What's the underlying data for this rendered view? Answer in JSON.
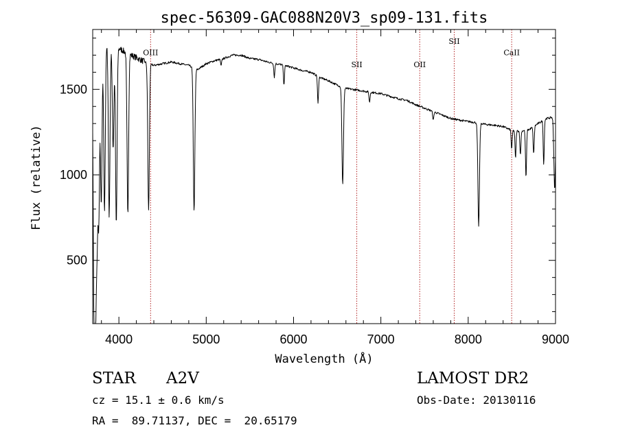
{
  "chart_data": {
    "type": "line",
    "title": "spec-56309-GAC088N20V3_sp09-131.fits",
    "xlabel": "Wavelength (Å)",
    "ylabel": "Flux (relative)",
    "xlim": [
      3700,
      9000
    ],
    "ylim": [
      130,
      1850
    ],
    "x_ticks": [
      4000,
      5000,
      6000,
      7000,
      8000,
      9000
    ],
    "y_ticks": [
      500,
      1000,
      1500
    ],
    "x_minor_step": 200,
    "y_minor_step": 100,
    "grid": false,
    "line_color": "#000000",
    "marker_color": "#b22222",
    "continuum": [
      [
        3700,
        1680
      ],
      [
        3800,
        1740
      ],
      [
        3900,
        1760
      ],
      [
        4000,
        1740
      ],
      [
        4100,
        1710
      ],
      [
        4200,
        1685
      ],
      [
        4300,
        1660
      ],
      [
        4400,
        1640
      ],
      [
        4500,
        1650
      ],
      [
        4600,
        1660
      ],
      [
        4700,
        1650
      ],
      [
        4800,
        1640
      ],
      [
        4900,
        1615
      ],
      [
        5000,
        1650
      ],
      [
        5100,
        1668
      ],
      [
        5200,
        1680
      ],
      [
        5300,
        1700
      ],
      [
        5400,
        1700
      ],
      [
        5500,
        1680
      ],
      [
        5600,
        1675
      ],
      [
        5700,
        1660
      ],
      [
        5800,
        1650
      ],
      [
        5900,
        1640
      ],
      [
        6000,
        1625
      ],
      [
        6100,
        1610
      ],
      [
        6200,
        1600
      ],
      [
        6300,
        1570
      ],
      [
        6400,
        1550
      ],
      [
        6500,
        1525
      ],
      [
        6600,
        1505
      ],
      [
        6700,
        1498
      ],
      [
        6800,
        1490
      ],
      [
        6900,
        1482
      ],
      [
        7000,
        1475
      ],
      [
        7100,
        1460
      ],
      [
        7200,
        1445
      ],
      [
        7300,
        1435
      ],
      [
        7400,
        1410
      ],
      [
        7500,
        1390
      ],
      [
        7600,
        1370
      ],
      [
        7700,
        1350
      ],
      [
        7800,
        1330
      ],
      [
        7900,
        1320
      ],
      [
        8000,
        1312
      ],
      [
        8100,
        1305
      ],
      [
        8200,
        1295
      ],
      [
        8300,
        1290
      ],
      [
        8400,
        1282
      ],
      [
        8500,
        1260
      ],
      [
        8600,
        1255
      ],
      [
        8700,
        1265
      ],
      [
        8800,
        1300
      ],
      [
        8900,
        1330
      ],
      [
        9000,
        1340
      ]
    ],
    "absorption_lines": [
      {
        "x": 3712,
        "depth": 880
      },
      {
        "x": 3722,
        "depth": 950
      },
      {
        "x": 3734,
        "depth": 1000
      },
      {
        "x": 3750,
        "depth": 920
      },
      {
        "x": 3770,
        "depth": 940
      },
      {
        "x": 3798,
        "depth": 920
      },
      {
        "x": 3835,
        "depth": 950
      },
      {
        "x": 3889,
        "depth": 1000
      },
      {
        "x": 3934,
        "depth": 600
      },
      {
        "x": 3970,
        "depth": 1040
      },
      {
        "x": 4102,
        "depth": 940
      },
      {
        "x": 4340,
        "depth": 860
      },
      {
        "x": 4861,
        "depth": 840
      },
      {
        "x": 5170,
        "depth": 40
      },
      {
        "x": 5780,
        "depth": 80
      },
      {
        "x": 5890,
        "depth": 110
      },
      {
        "x": 6280,
        "depth": 160
      },
      {
        "x": 6563,
        "depth": 570
      },
      {
        "x": 6870,
        "depth": 60
      },
      {
        "x": 7600,
        "depth": 50
      },
      {
        "x": 8120,
        "depth": 600
      },
      {
        "x": 8498,
        "depth": 110
      },
      {
        "x": 8542,
        "depth": 160
      },
      {
        "x": 8598,
        "depth": 140
      },
      {
        "x": 8662,
        "depth": 280
      },
      {
        "x": 8750,
        "depth": 160
      },
      {
        "x": 8865,
        "depth": 260
      },
      {
        "x": 8990,
        "depth": 420
      }
    ],
    "annotations": [
      {
        "label": "OIII",
        "x": 4363,
        "y": 1700
      },
      {
        "label": "SII",
        "x": 6724,
        "y": 1630
      },
      {
        "label": "OII",
        "x": 7445,
        "y": 1630
      },
      {
        "label": "SII",
        "x": 7840,
        "y": 1765
      },
      {
        "label": "CaII",
        "x": 8498,
        "y": 1700
      }
    ]
  },
  "info": {
    "object_class": "STAR",
    "subclass": "A2V",
    "redshift_line": "cz = 15.1 ± 0.6 km/s",
    "coords_line": "RA =  89.71137, DEC =  20.65179",
    "survey": "LAMOST DR2",
    "obs_date_line": "Obs-Date: 20130116"
  }
}
